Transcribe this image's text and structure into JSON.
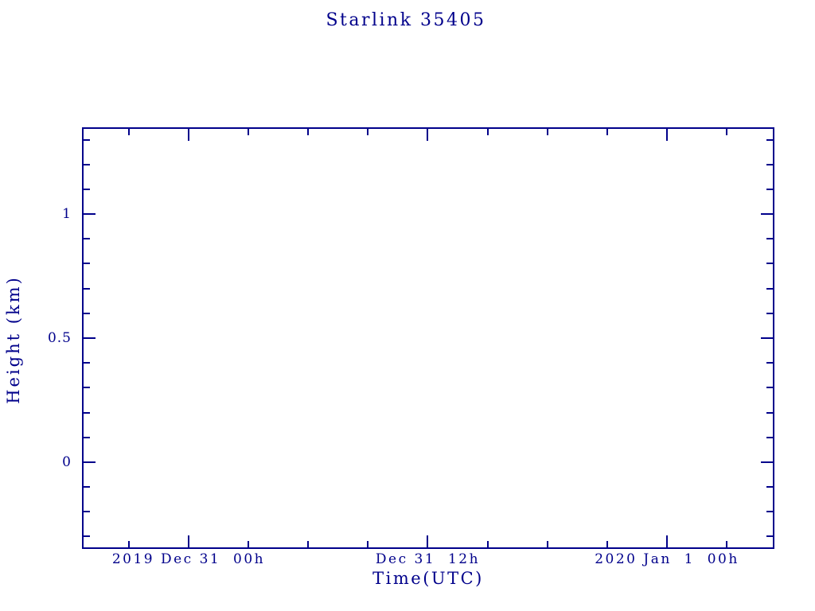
{
  "chart_data": {
    "type": "scatter",
    "title": "Starlink 35405",
    "series": [],
    "x_axis": {
      "label": "Time(UTC)",
      "lim_hours": [
        -5.35,
        29.39
      ],
      "minor_step_hours": 3,
      "major_ticks": [
        {
          "h": 0,
          "label": "2019 Dec 31  00h"
        },
        {
          "h": 12,
          "label": "Dec 31  12h"
        },
        {
          "h": 24,
          "label": "2020 Jan  1  00h"
        }
      ]
    },
    "y_axis": {
      "label": "Height (km)",
      "lim": [
        -0.35,
        1.35
      ],
      "minor_step": 0.1,
      "major_ticks": [
        {
          "v": 1,
          "label": "1"
        },
        {
          "v": 0.5,
          "label": "0.5"
        },
        {
          "v": 0,
          "label": "0"
        }
      ]
    },
    "colors": {
      "frame": "#00008b",
      "text": "#00008b",
      "background": "#ffffff"
    }
  }
}
